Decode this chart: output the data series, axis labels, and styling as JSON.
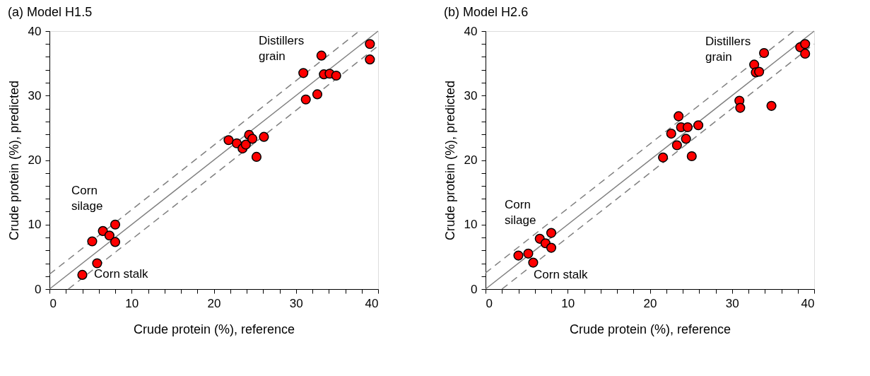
{
  "chart_data": [
    {
      "type": "scatter",
      "title": "(a) Model H1.5",
      "xlabel": "Crude protein (%), reference",
      "ylabel": "Crude protein (%), predicted",
      "xlim": [
        0,
        40
      ],
      "ylim": [
        0,
        40
      ],
      "xticks": [
        0,
        {
          "value": 2,
          "label": null
        },
        {
          "value": 4,
          "label": null
        },
        {
          "value": 6,
          "label": null
        },
        {
          "value": 8,
          "label": null
        },
        10,
        {
          "value": 12,
          "label": null
        },
        {
          "value": 14,
          "label": null
        },
        {
          "value": 16,
          "label": null
        },
        {
          "value": 18,
          "label": null
        },
        20,
        {
          "value": 22,
          "label": null
        },
        {
          "value": 24,
          "label": null
        },
        {
          "value": 26,
          "label": null
        },
        {
          "value": 28,
          "label": null
        },
        30,
        {
          "value": 32,
          "label": null
        },
        {
          "value": 34,
          "label": null
        },
        {
          "value": 36,
          "label": null
        },
        {
          "value": 38,
          "label": null
        },
        40
      ],
      "yticks": [
        0,
        {
          "value": 2,
          "label": null
        },
        {
          "value": 4,
          "label": null
        },
        {
          "value": 6,
          "label": null
        },
        {
          "value": 8,
          "label": null
        },
        10,
        {
          "value": 12,
          "label": null
        },
        {
          "value": 14,
          "label": null
        },
        {
          "value": 16,
          "label": null
        },
        {
          "value": 18,
          "label": null
        },
        20,
        {
          "value": 22,
          "label": null
        },
        {
          "value": 24,
          "label": null
        },
        {
          "value": 26,
          "label": null
        },
        {
          "value": 28,
          "label": null
        },
        30,
        {
          "value": 32,
          "label": null
        },
        {
          "value": 34,
          "label": null
        },
        {
          "value": 36,
          "label": null
        },
        {
          "value": 38,
          "label": null
        },
        40
      ],
      "grid": false,
      "marker": "circle",
      "series": [
        {
          "type": "line",
          "color": "#808080",
          "line_style": "solid",
          "marker": "none",
          "x": [
            0,
            40
          ],
          "values": [
            0,
            40
          ]
        },
        {
          "type": "line",
          "color": "#808080",
          "line_style": "dashed",
          "marker": "none",
          "x": [
            0,
            37.7
          ],
          "values": [
            2.3,
            40
          ]
        },
        {
          "type": "line",
          "color": "#808080",
          "line_style": "dashed",
          "marker": "none",
          "x": [
            2.3,
            40
          ],
          "values": [
            0,
            37.7
          ]
        },
        {
          "color": "#ff0000",
          "x": [
            4,
            5.8,
            5.2,
            6.5,
            7.3,
            8,
            8,
            21.8,
            22.8,
            23.5,
            23.9,
            24.3,
            24.7,
            25.2,
            26.1,
            30.9,
            31.2,
            32.6,
            33.1,
            33.4,
            34.1,
            34.9,
            39,
            39
          ],
          "values": [
            2.2,
            4,
            7.4,
            9,
            8.3,
            10,
            7.3,
            23.1,
            22.6,
            21.8,
            22.4,
            23.9,
            23.3,
            20.5,
            23.6,
            33.5,
            29.4,
            30.2,
            36.2,
            33.3,
            33.4,
            33.1,
            38,
            35.6
          ]
        }
      ],
      "annotations": [
        "Distillers\ngrain",
        "Corn\nsilage",
        "Corn stalk"
      ]
    },
    {
      "type": "scatter",
      "title": "(b) Model H2.6",
      "xlabel": "Crude protein (%), reference",
      "ylabel": "Crude protein (%), predicted",
      "xlim": [
        0,
        40
      ],
      "ylim": [
        0,
        40
      ],
      "xticks": [
        0,
        {
          "value": 2,
          "label": null
        },
        {
          "value": 4,
          "label": null
        },
        {
          "value": 6,
          "label": null
        },
        {
          "value": 8,
          "label": null
        },
        10,
        {
          "value": 12,
          "label": null
        },
        {
          "value": 14,
          "label": null
        },
        {
          "value": 16,
          "label": null
        },
        {
          "value": 18,
          "label": null
        },
        20,
        {
          "value": 22,
          "label": null
        },
        {
          "value": 24,
          "label": null
        },
        {
          "value": 26,
          "label": null
        },
        {
          "value": 28,
          "label": null
        },
        30,
        {
          "value": 32,
          "label": null
        },
        {
          "value": 34,
          "label": null
        },
        {
          "value": 36,
          "label": null
        },
        {
          "value": 38,
          "label": null
        },
        40
      ],
      "yticks": [
        0,
        {
          "value": 2,
          "label": null
        },
        {
          "value": 4,
          "label": null
        },
        {
          "value": 6,
          "label": null
        },
        {
          "value": 8,
          "label": null
        },
        10,
        {
          "value": 12,
          "label": null
        },
        {
          "value": 14,
          "label": null
        },
        {
          "value": 16,
          "label": null
        },
        {
          "value": 18,
          "label": null
        },
        20,
        {
          "value": 22,
          "label": null
        },
        {
          "value": 24,
          "label": null
        },
        {
          "value": 26,
          "label": null
        },
        {
          "value": 28,
          "label": null
        },
        30,
        {
          "value": 32,
          "label": null
        },
        {
          "value": 34,
          "label": null
        },
        {
          "value": 36,
          "label": null
        },
        {
          "value": 38,
          "label": null
        },
        40
      ],
      "grid": false,
      "marker": "circle",
      "series": [
        {
          "type": "line",
          "color": "#808080",
          "line_style": "solid",
          "marker": "none",
          "x": [
            0,
            40
          ],
          "values": [
            0,
            40
          ]
        },
        {
          "type": "line",
          "color": "#808080",
          "line_style": "dashed",
          "marker": "none",
          "x": [
            0,
            37.5
          ],
          "values": [
            2.5,
            40
          ]
        },
        {
          "type": "line",
          "color": "#808080",
          "line_style": "dashed",
          "marker": "none",
          "x": [
            2,
            40
          ],
          "values": [
            0,
            38
          ]
        },
        {
          "color": "#ff0000",
          "x": [
            4,
            5.2,
            5.8,
            6.6,
            7.3,
            8,
            8,
            21.6,
            22.6,
            23.3,
            23.5,
            23.8,
            24.4,
            24.6,
            25.1,
            25.9,
            30.9,
            31,
            32.7,
            32.9,
            33.3,
            33.9,
            34.8,
            38.3,
            38.9,
            38.9
          ],
          "values": [
            5.2,
            5.5,
            4.1,
            7.8,
            7.1,
            8.7,
            6.4,
            20.4,
            24.1,
            22.3,
            26.8,
            25.1,
            23.3,
            25.1,
            20.6,
            25.4,
            29.2,
            28.1,
            34.8,
            33.6,
            33.7,
            36.6,
            28.4,
            37.5,
            38,
            36.5
          ]
        }
      ],
      "annotations": [
        "Distillers\ngrain",
        "Corn\nsilage",
        "Corn stalk"
      ]
    }
  ]
}
